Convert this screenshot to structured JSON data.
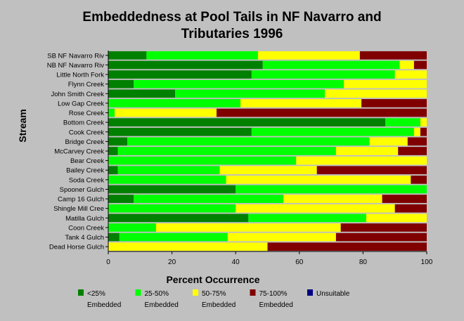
{
  "chart_data": {
    "type": "bar",
    "orientation": "horizontal",
    "stacked": true,
    "title": "Embeddedness at Pool Tails in NF Navarro and Tributaries 1996",
    "title_lines": [
      "Embeddedness at Pool Tails in NF Navarro and",
      "Tributaries 1996"
    ],
    "xlabel": "Percent Occurrence",
    "ylabel": "Stream",
    "xlim": [
      0,
      100
    ],
    "xticks": [
      0,
      20,
      40,
      60,
      80,
      100
    ],
    "grid": false,
    "legend_position": "bottom",
    "categories": [
      "SB NF Navarro Riv",
      "NB NF Navarro Riv",
      "Little North Fork",
      "Flynn Creek",
      "John Smith Creek",
      "Low Gap Creek",
      "Rose Creek",
      "Bottom Creek",
      "Cook Creek",
      "Bridge Creek",
      "McCarvey Creek",
      "Bear Creek",
      "Bailey Creek",
      "Soda Creek",
      "Spooner Gulch",
      "Camp 16 Gulch",
      "Shingle Mill Cree",
      "Matilla Gulch",
      "Coon Creek",
      "Tank 4 Gulch",
      "Dead Horse Gulch"
    ],
    "series": [
      {
        "name": "<25% Embedded",
        "label_lines": [
          "<25%",
          "Embedded"
        ],
        "color": "#008000",
        "values": [
          12,
          48.5,
          45,
          8,
          21,
          0,
          0,
          87,
          45,
          6,
          3,
          0,
          3,
          0,
          40,
          8,
          0,
          44,
          0,
          3.5,
          0
        ]
      },
      {
        "name": "25-50% Embedded",
        "label_lines": [
          "25-50%",
          "Embedded"
        ],
        "color": "#00ff00",
        "values": [
          35,
          43,
          45,
          66,
          47,
          41.5,
          2,
          11,
          51,
          76,
          68.5,
          59,
          32,
          37,
          60,
          47,
          40,
          37,
          15,
          34,
          0
        ]
      },
      {
        "name": "50-75% Embedded",
        "label_lines": [
          "50-75%",
          "Embedded"
        ],
        "color": "#ffff00",
        "values": [
          32,
          4.5,
          10,
          26,
          32,
          38,
          32,
          2,
          2,
          12,
          19.5,
          41,
          30.5,
          58,
          0,
          31,
          50,
          19,
          58,
          34,
          50
        ]
      },
      {
        "name": "75-100% Embedded",
        "label_lines": [
          "75-100%",
          "Embedded"
        ],
        "color": "#800000",
        "values": [
          21,
          4,
          0,
          0,
          0,
          20.5,
          66,
          0,
          2,
          6,
          9,
          0,
          34.5,
          5,
          0,
          14,
          10,
          0,
          27,
          28.5,
          50
        ]
      },
      {
        "name": "Unsuitable",
        "label_lines": [
          "Unsuitable",
          ""
        ],
        "color": "#000080",
        "values": [
          0,
          0,
          0,
          0,
          0,
          0,
          0,
          0,
          0,
          0,
          0,
          0,
          0,
          0,
          0,
          0,
          0,
          0,
          0,
          0,
          0
        ]
      }
    ]
  }
}
